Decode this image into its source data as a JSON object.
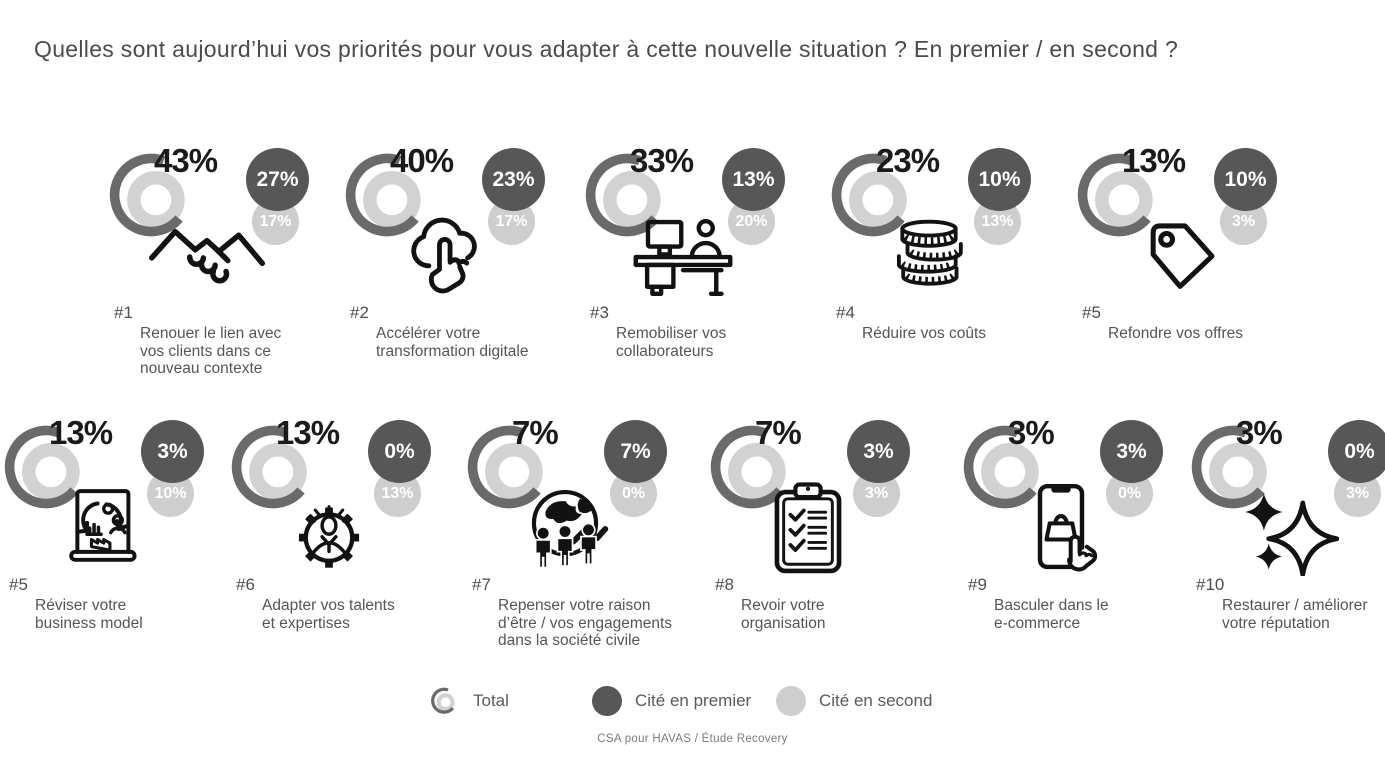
{
  "title": "Quelles sont aujourd’hui vos priorités pour vous adapter à cette nouvelle situation ? En premier / en second ?",
  "legend": {
    "total_label": "Total",
    "first_label": "Cité en premier",
    "second_label": "Cité en second"
  },
  "source": "CSA pour HAVAS / Étude Recovery",
  "colors": {
    "first_bubble": "#575757",
    "second_bubble": "#cecece",
    "ring_outer": "#6a6a6a",
    "ring_inner": "#d2d2d2",
    "icon_ink": "#121212",
    "text": "#555555"
  },
  "chart_data": {
    "type": "pictogram-ranking",
    "unit": "%",
    "series_labels": [
      "Total",
      "Cité en premier",
      "Cité en second"
    ],
    "items": [
      {
        "rank": "#1",
        "label": "Renouer le lien avec vos clients dans ce nouveau contexte",
        "total": 43,
        "first": 27,
        "second": 17,
        "icon": "handshake"
      },
      {
        "rank": "#2",
        "label": "Accélérer votre transformation digitale",
        "total": 40,
        "first": 23,
        "second": 17,
        "icon": "cloud-click"
      },
      {
        "rank": "#3",
        "label": "Remobiliser vos collaborateurs",
        "total": 33,
        "first": 13,
        "second": 20,
        "icon": "desk-worker"
      },
      {
        "rank": "#4",
        "label": "Réduire vos coûts",
        "total": 23,
        "first": 10,
        "second": 13,
        "icon": "coins"
      },
      {
        "rank": "#5",
        "label": "Refondre vos offres",
        "total": 13,
        "first": 10,
        "second": 3,
        "icon": "price-tag"
      },
      {
        "rank": "#5",
        "label": "Réviser votre business model",
        "total": 13,
        "first": 3,
        "second": 10,
        "icon": "flipchart-cycle"
      },
      {
        "rank": "#6",
        "label": "Adapter vos talents et expertises",
        "total": 13,
        "first": 0,
        "second": 13,
        "icon": "gear-person"
      },
      {
        "rank": "#7",
        "label": "Repenser votre raison d’être / vos engagements dans la société civile",
        "total": 7,
        "first": 7,
        "second": 0,
        "icon": "globe-people"
      },
      {
        "rank": "#8",
        "label": "Revoir votre organisation",
        "total": 7,
        "first": 3,
        "second": 3,
        "icon": "clipboard-checklist"
      },
      {
        "rank": "#9",
        "label": "Basculer dans le e-commerce",
        "total": 3,
        "first": 3,
        "second": 0,
        "icon": "phone-shopping"
      },
      {
        "rank": "#10",
        "label": "Restaurer / améliorer votre réputation",
        "total": 3,
        "first": 0,
        "second": 3,
        "icon": "sparkles"
      }
    ]
  }
}
